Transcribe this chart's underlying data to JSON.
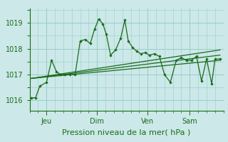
{
  "bg_color": "#cce8e8",
  "grid_color": "#99cccc",
  "line_color": "#1a6b1a",
  "title": "Pression niveau de la mer( hPa )",
  "ylim": [
    1015.6,
    1019.55
  ],
  "yticks": [
    1016,
    1017,
    1018,
    1019
  ],
  "day_labels": [
    "Jeu",
    "Dim",
    "Ven",
    "Sam"
  ],
  "day_positions": [
    1,
    4,
    7,
    9.5
  ],
  "xlim": [
    0,
    11.5
  ],
  "series1_x": [
    0.1,
    0.35,
    0.6,
    1.0,
    1.3,
    1.6,
    1.85,
    2.1,
    2.4,
    2.7,
    3.0,
    3.3,
    3.6,
    3.85,
    4.1,
    4.35,
    4.55,
    4.8,
    5.1,
    5.4,
    5.65,
    5.85,
    6.1,
    6.35,
    6.6,
    6.85,
    7.1,
    7.4,
    7.7,
    8.0,
    8.35,
    8.7,
    9.0,
    9.3,
    9.6,
    9.9,
    10.2,
    10.5,
    10.8,
    11.0,
    11.3
  ],
  "series1_y": [
    1016.1,
    1016.1,
    1016.55,
    1016.7,
    1017.55,
    1017.1,
    1017.0,
    1017.0,
    1017.0,
    1017.0,
    1018.3,
    1018.35,
    1018.2,
    1018.75,
    1019.15,
    1018.95,
    1018.55,
    1017.75,
    1017.95,
    1018.4,
    1019.1,
    1018.3,
    1018.05,
    1017.9,
    1017.8,
    1017.85,
    1017.75,
    1017.8,
    1017.7,
    1017.0,
    1016.7,
    1017.55,
    1017.65,
    1017.55,
    1017.55,
    1017.7,
    1016.75,
    1017.6,
    1016.65,
    1017.6,
    1017.6
  ],
  "trend1_x": [
    0.1,
    11.3
  ],
  "trend1_y": [
    1016.85,
    1017.55
  ],
  "trend2_x": [
    0.1,
    11.3
  ],
  "trend2_y": [
    1016.85,
    1017.75
  ],
  "trend3_x": [
    0.1,
    11.3
  ],
  "trend3_y": [
    1016.85,
    1017.95
  ]
}
